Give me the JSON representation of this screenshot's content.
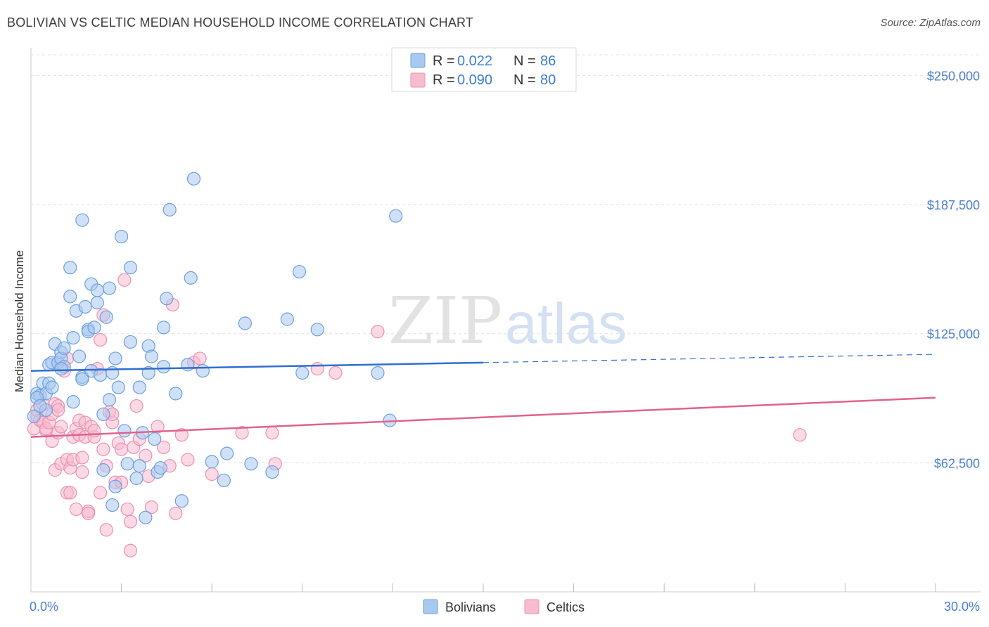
{
  "header": {
    "title": "BOLIVIAN VS CELTIC MEDIAN HOUSEHOLD INCOME CORRELATION CHART",
    "source": "Source: ZipAtlas.com"
  },
  "watermark": {
    "zip": "ZIP",
    "atlas": "atlas"
  },
  "colors": {
    "bolivians_fill": "#a9c8f0",
    "bolivians_stroke": "#6b9fe0",
    "bolivians_line": "#2f6fcf",
    "celtics_fill": "#f7bcd0",
    "celtics_stroke": "#ec8fb0",
    "celtics_line": "#e0628f",
    "tick_label": "#4a7fd0"
  },
  "legend": {
    "rows": [
      {
        "r_label": "R =",
        "r_value": "0.022",
        "n_label": "N =",
        "n_value": "86"
      },
      {
        "r_label": "R =",
        "r_value": "0.090",
        "n_label": "N =",
        "n_value": "80"
      }
    ]
  },
  "chart_data": {
    "type": "scatter",
    "title": "BOLIVIAN VS CELTIC MEDIAN HOUSEHOLD INCOME CORRELATION CHART",
    "xlabel": "",
    "ylabel": "Median Household Income",
    "xlim": [
      0,
      30
    ],
    "ylim": [
      0,
      260000
    ],
    "x_tick_labels": [
      "0.0%",
      "30.0%"
    ],
    "y_ticks": [
      62500,
      125000,
      187500,
      250000
    ],
    "y_tick_labels": [
      "$62,500",
      "$125,000",
      "$187,500",
      "$250,000"
    ],
    "series": [
      {
        "name": "Bolivians",
        "r": 0.022,
        "n": 86,
        "trend": {
          "x0": 0,
          "y0": 107000,
          "x1": 15,
          "y1": 111000,
          "dash_to_x": 30,
          "dash_y": 115000
        },
        "points": [
          [
            0.2,
            96000
          ],
          [
            0.3,
            95000
          ],
          [
            0.4,
            101000
          ],
          [
            0.5,
            96000
          ],
          [
            0.5,
            88000
          ],
          [
            0.6,
            110000
          ],
          [
            0.6,
            101000
          ],
          [
            0.7,
            99000
          ],
          [
            0.7,
            111000
          ],
          [
            0.8,
            120000
          ],
          [
            0.9,
            111000
          ],
          [
            1.0,
            116000
          ],
          [
            1.0,
            113000
          ],
          [
            1.1,
            118000
          ],
          [
            1.1,
            109000
          ],
          [
            1.3,
            157000
          ],
          [
            1.3,
            143000
          ],
          [
            1.4,
            92000
          ],
          [
            1.4,
            123000
          ],
          [
            1.5,
            136000
          ],
          [
            1.6,
            114000
          ],
          [
            1.7,
            104000
          ],
          [
            1.7,
            180000
          ],
          [
            1.7,
            103000
          ],
          [
            1.8,
            138000
          ],
          [
            1.9,
            127000
          ],
          [
            1.9,
            126000
          ],
          [
            2.0,
            107000
          ],
          [
            2.0,
            149000
          ],
          [
            2.1,
            128000
          ],
          [
            2.2,
            140000
          ],
          [
            2.2,
            146000
          ],
          [
            2.3,
            105000
          ],
          [
            2.4,
            59000
          ],
          [
            2.4,
            86000
          ],
          [
            2.5,
            133000
          ],
          [
            2.6,
            147000
          ],
          [
            2.6,
            93000
          ],
          [
            2.7,
            42000
          ],
          [
            2.7,
            106000
          ],
          [
            2.8,
            51000
          ],
          [
            2.8,
            113000
          ],
          [
            2.9,
            99000
          ],
          [
            3.0,
            172000
          ],
          [
            3.1,
            78000
          ],
          [
            3.2,
            62000
          ],
          [
            3.3,
            157000
          ],
          [
            3.3,
            121000
          ],
          [
            3.5,
            55000
          ],
          [
            3.6,
            99000
          ],
          [
            3.7,
            77000
          ],
          [
            3.8,
            36000
          ],
          [
            3.9,
            119000
          ],
          [
            3.9,
            106000
          ],
          [
            4.0,
            114000
          ],
          [
            4.1,
            74000
          ],
          [
            4.2,
            58000
          ],
          [
            4.3,
            60000
          ],
          [
            4.4,
            109000
          ],
          [
            4.4,
            128000
          ],
          [
            4.5,
            142000
          ],
          [
            4.6,
            185000
          ],
          [
            4.8,
            96000
          ],
          [
            5.0,
            44000
          ],
          [
            5.2,
            110000
          ],
          [
            5.3,
            152000
          ],
          [
            5.4,
            200000
          ],
          [
            5.7,
            107000
          ],
          [
            6.0,
            63000
          ],
          [
            6.4,
            54000
          ],
          [
            6.5,
            67000
          ],
          [
            7.1,
            130000
          ],
          [
            7.3,
            62000
          ],
          [
            8.0,
            58000
          ],
          [
            8.5,
            132000
          ],
          [
            8.9,
            155000
          ],
          [
            9.0,
            106000
          ],
          [
            9.5,
            127000
          ],
          [
            11.5,
            106000
          ],
          [
            11.9,
            83000
          ],
          [
            12.1,
            182000
          ],
          [
            0.1,
            85000
          ],
          [
            0.2,
            94000
          ],
          [
            0.3,
            90000
          ],
          [
            1.0,
            108000
          ],
          [
            3.6,
            61000
          ]
        ]
      },
      {
        "name": "Celtics",
        "r": 0.09,
        "n": 80,
        "trend": {
          "x0": 0,
          "y0": 75000,
          "x1": 30,
          "y1": 94000
        },
        "points": [
          [
            0.1,
            79000
          ],
          [
            0.2,
            85000
          ],
          [
            0.2,
            88000
          ],
          [
            0.3,
            83000
          ],
          [
            0.4,
            91000
          ],
          [
            0.4,
            82000
          ],
          [
            0.5,
            78000
          ],
          [
            0.5,
            79000
          ],
          [
            0.6,
            82000
          ],
          [
            0.7,
            86000
          ],
          [
            0.7,
            73000
          ],
          [
            0.8,
            91000
          ],
          [
            0.8,
            59000
          ],
          [
            0.9,
            77000
          ],
          [
            0.9,
            90000
          ],
          [
            1.0,
            80000
          ],
          [
            1.0,
            62000
          ],
          [
            1.1,
            107000
          ],
          [
            1.2,
            64000
          ],
          [
            1.2,
            48000
          ],
          [
            1.3,
            60000
          ],
          [
            1.3,
            48000
          ],
          [
            1.4,
            75000
          ],
          [
            1.4,
            64000
          ],
          [
            1.5,
            40000
          ],
          [
            1.5,
            79000
          ],
          [
            1.6,
            83000
          ],
          [
            1.6,
            76000
          ],
          [
            1.7,
            65000
          ],
          [
            1.8,
            82000
          ],
          [
            1.8,
            75000
          ],
          [
            1.9,
            39000
          ],
          [
            1.9,
            38000
          ],
          [
            2.0,
            80000
          ],
          [
            2.1,
            75000
          ],
          [
            2.1,
            78000
          ],
          [
            2.2,
            108000
          ],
          [
            2.3,
            122000
          ],
          [
            2.3,
            48000
          ],
          [
            2.4,
            69000
          ],
          [
            2.5,
            30000
          ],
          [
            2.5,
            61000
          ],
          [
            2.6,
            87000
          ],
          [
            2.7,
            82000
          ],
          [
            2.7,
            86000
          ],
          [
            2.8,
            53000
          ],
          [
            2.9,
            72000
          ],
          [
            3.0,
            53000
          ],
          [
            3.0,
            69000
          ],
          [
            3.1,
            151000
          ],
          [
            3.2,
            40000
          ],
          [
            3.3,
            20000
          ],
          [
            3.4,
            70000
          ],
          [
            3.5,
            90000
          ],
          [
            3.6,
            74000
          ],
          [
            3.8,
            66000
          ],
          [
            3.9,
            56000
          ],
          [
            4.0,
            41000
          ],
          [
            4.2,
            80000
          ],
          [
            4.4,
            70000
          ],
          [
            4.6,
            61000
          ],
          [
            4.7,
            139000
          ],
          [
            5.0,
            76000
          ],
          [
            5.2,
            64000
          ],
          [
            5.4,
            111000
          ],
          [
            5.6,
            113000
          ],
          [
            6.0,
            57000
          ],
          [
            7.0,
            77000
          ],
          [
            8.0,
            77000
          ],
          [
            8.1,
            62000
          ],
          [
            9.5,
            108000
          ],
          [
            10.1,
            106000
          ],
          [
            11.5,
            126000
          ],
          [
            25.5,
            76000
          ],
          [
            2.4,
            134000
          ],
          [
            1.2,
            113000
          ],
          [
            0.9,
            88000
          ],
          [
            1.7,
            58000
          ],
          [
            3.3,
            34000
          ],
          [
            4.8,
            38000
          ]
        ]
      }
    ]
  },
  "bottom_legend": [
    "Bolivians",
    "Celtics"
  ]
}
